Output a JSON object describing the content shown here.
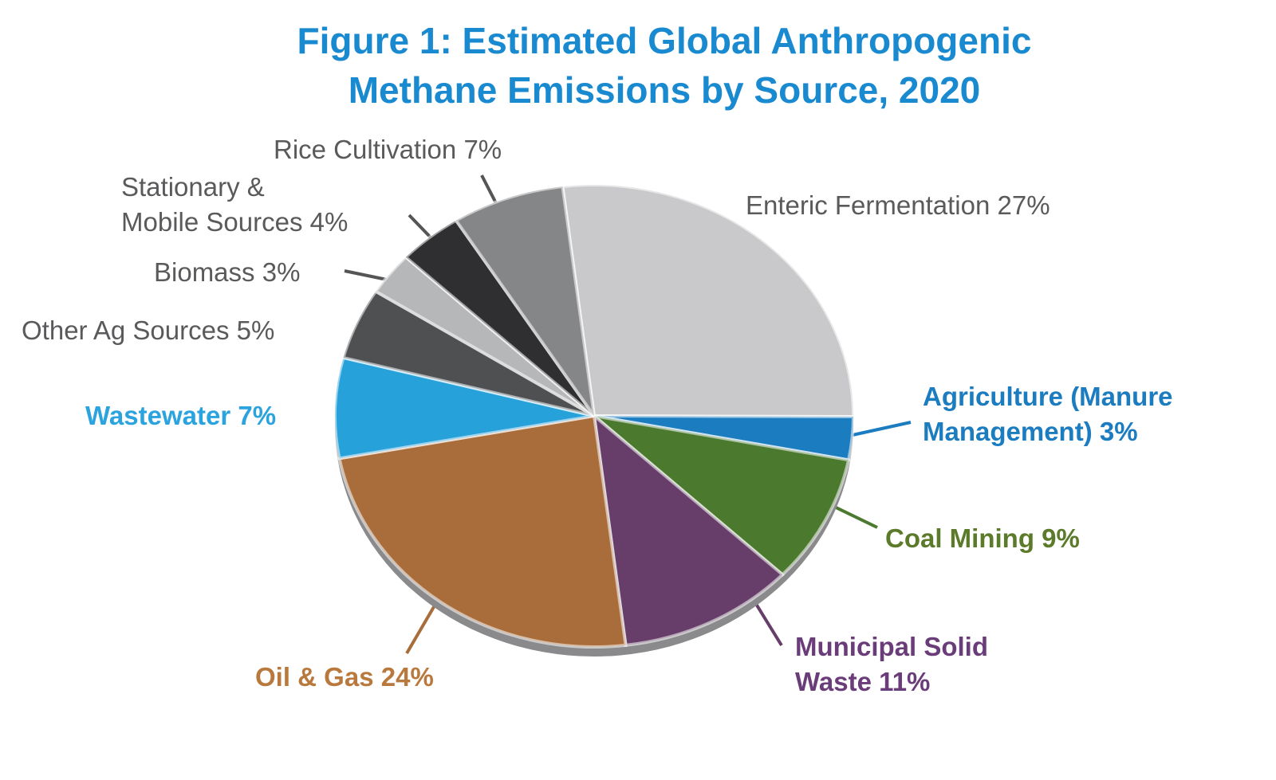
{
  "chart_data": {
    "type": "pie",
    "title": "Figure 1: Estimated Global Anthropogenic Methane Emissions by Source, 2020",
    "categories": [
      "Enteric Fermentation",
      "Agriculture (Manure\nManagement)",
      "Coal Mining",
      "Municipal Solid\nWaste",
      "Oil & Gas",
      "Wastewater",
      "Other Ag Sources",
      "Biomass",
      "Stationary &\nMobile Sources",
      "Rice Cultivation"
    ],
    "values": [
      27,
      3,
      9,
      11,
      24,
      7,
      5,
      3,
      4,
      7
    ],
    "value_labels": [
      "27%",
      "3%",
      "9%",
      "11%",
      "24%",
      "7%",
      "5%",
      "3%",
      "4%",
      "7%"
    ],
    "colors": [
      "#c9c9cb",
      "#1b7cc0",
      "#4b7a2f",
      "#673e69",
      "#a96d3c",
      "#27a1d9",
      "#4f5052",
      "#b6b7b9",
      "#2f2f31",
      "#858688"
    ],
    "label_colors": [
      "#5a5a5c",
      "#1b7cc0",
      "#5b7a2a",
      "#6a3d7a",
      "#b9793d",
      "#2aa3de",
      "#5a5a5c",
      "#5a5a5c",
      "#5a5a5c",
      "#5a5a5c"
    ]
  }
}
